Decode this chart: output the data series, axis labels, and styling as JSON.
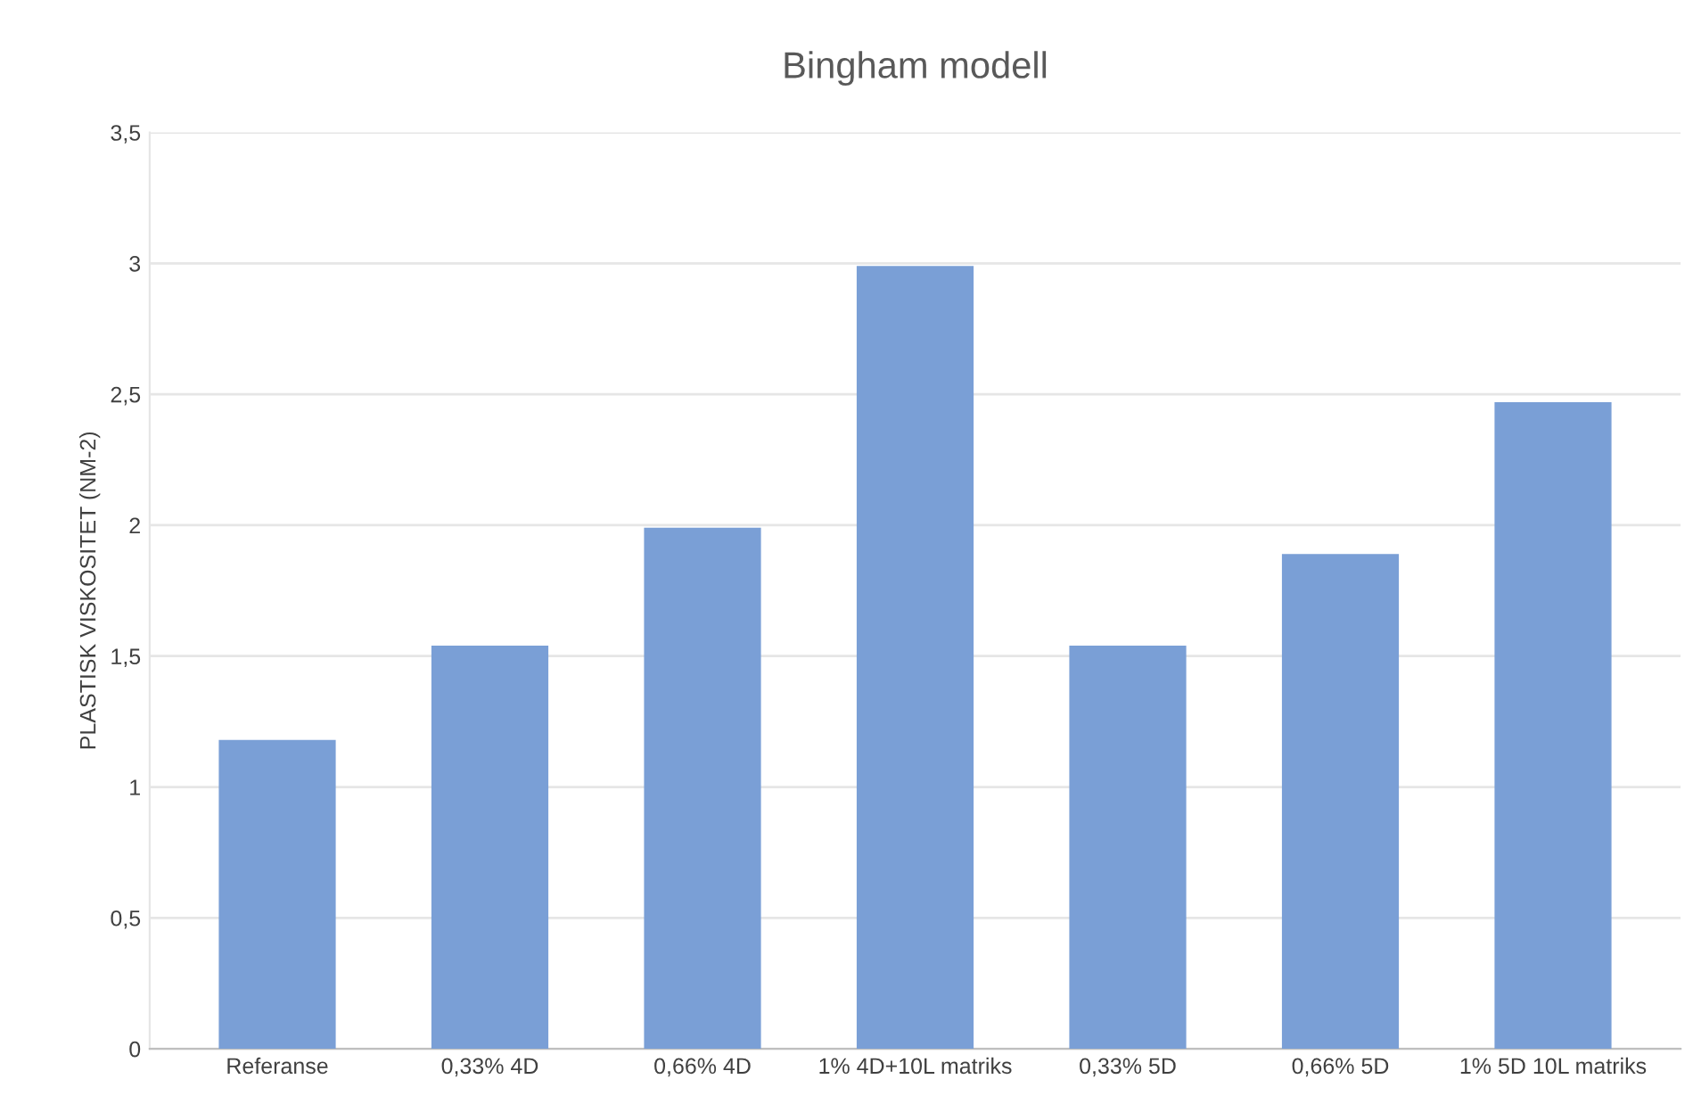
{
  "chart_data": {
    "type": "bar",
    "title": "Bingham modell",
    "ylabel": "PLASTISK VISKOSITET (NM-2)",
    "categories": [
      "Referanse",
      "0,33% 4D",
      "0,66% 4D",
      "1% 4D+10L matriks",
      "0,33% 5D",
      "0,66% 5D",
      "1% 5D 10L matriks"
    ],
    "values": [
      1.18,
      1.54,
      1.99,
      2.99,
      1.54,
      1.89,
      2.47
    ],
    "color": "#7a9fd6",
    "ylim": [
      0,
      3.5
    ],
    "yticks": [
      0,
      {
        "value": 0.5,
        "label": "0,5"
      },
      1,
      {
        "value": 1.5,
        "label": "1,5"
      },
      2,
      {
        "value": 2.5,
        "label": "2,5"
      },
      3,
      {
        "value": 3.5,
        "label": "3,5"
      }
    ],
    "grid": "y"
  }
}
